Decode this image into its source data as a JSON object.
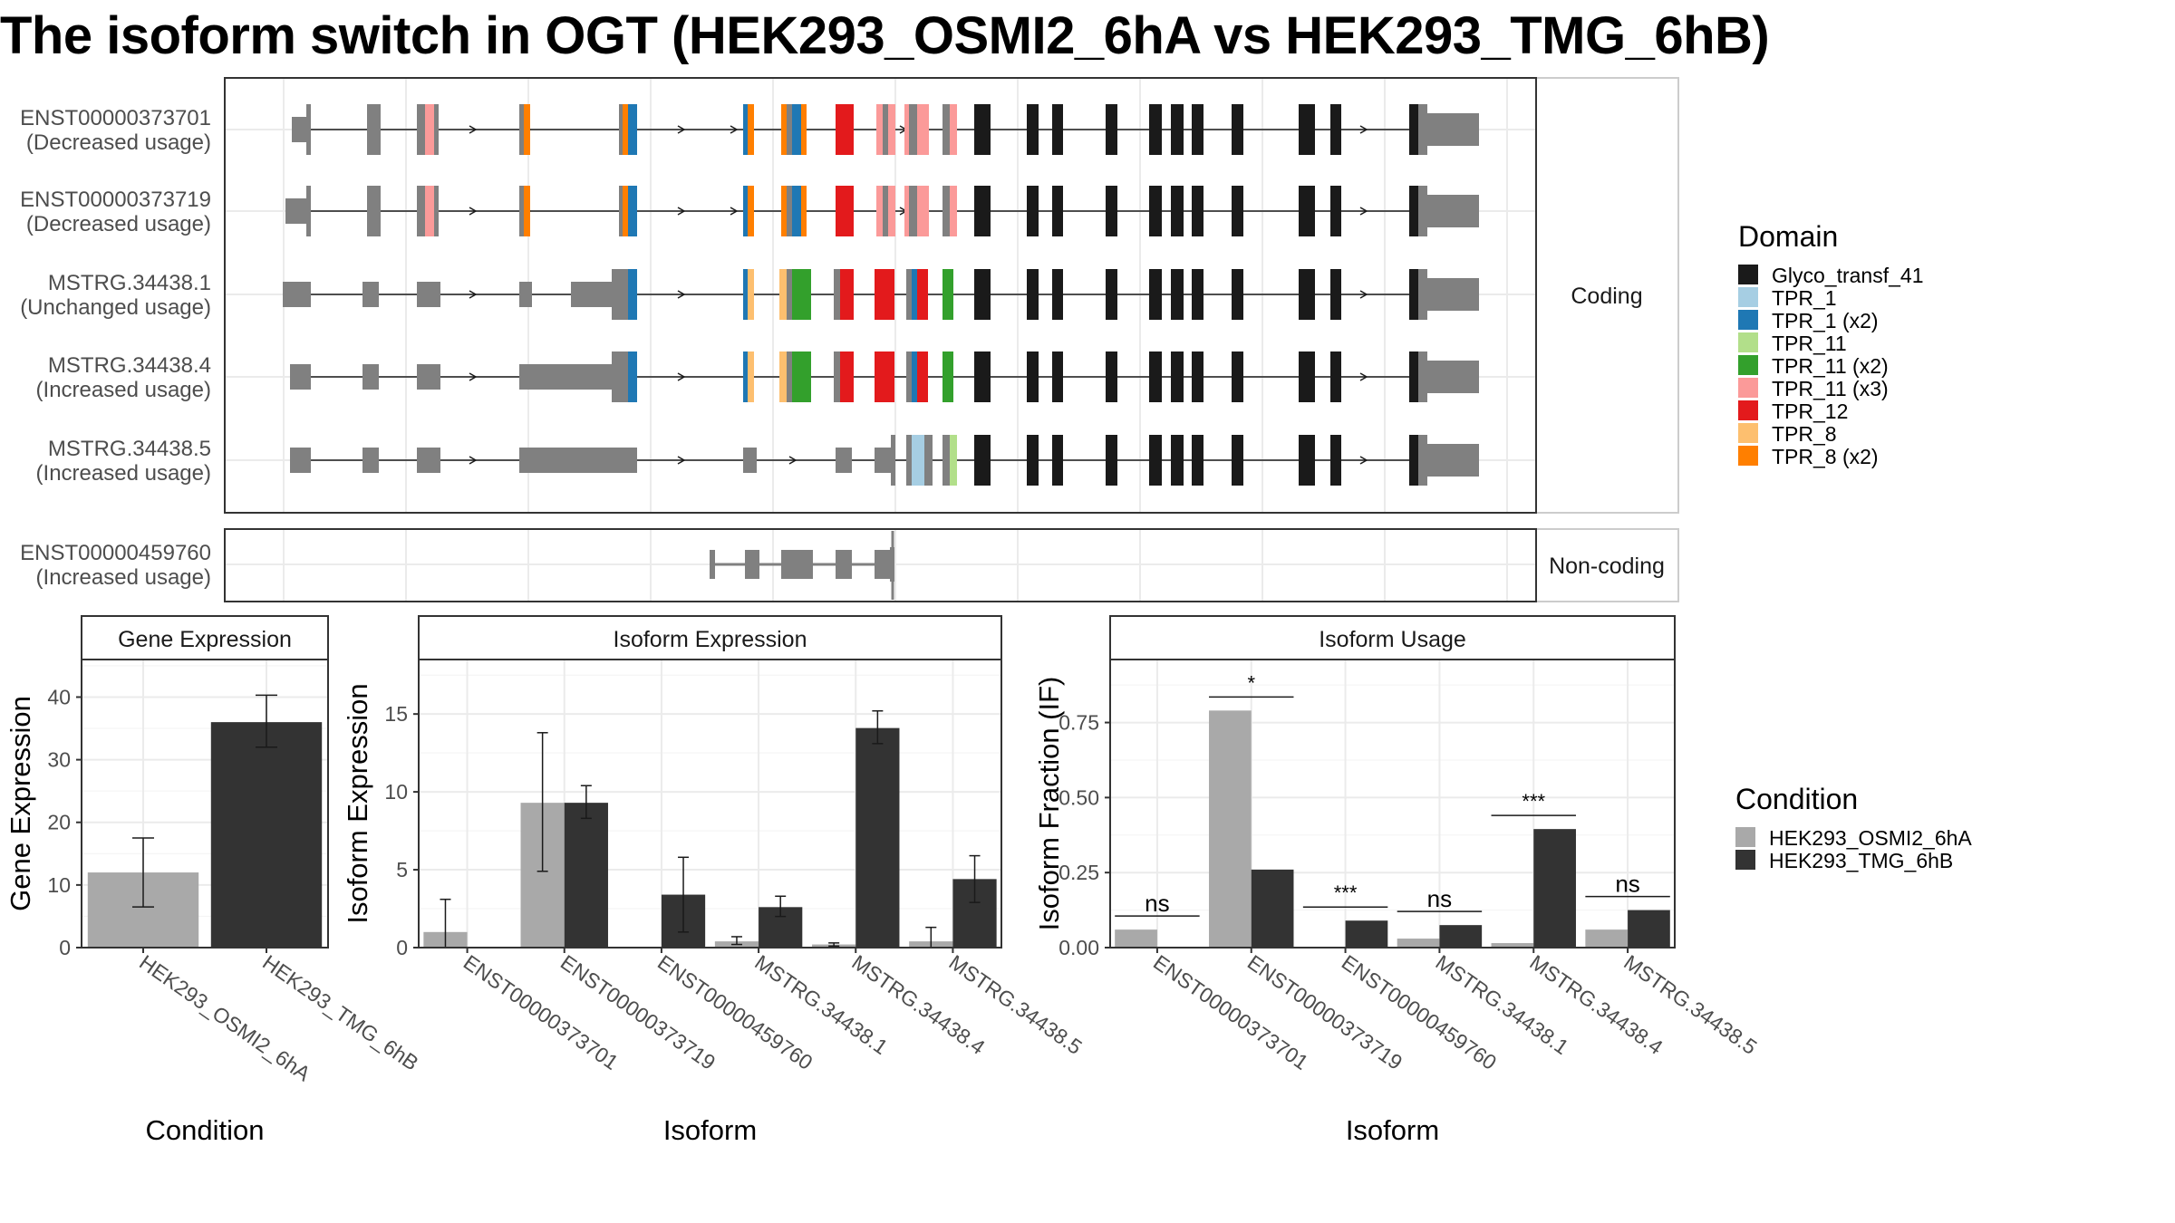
{
  "title": "The isoform switch in OGT (HEK293_OSMI2_6hA vs HEK293_TMG_6hB)",
  "colors": {
    "Glyco_transf_41": "#1a1a1a",
    "TPR_1": "#a6cee3",
    "TPR_1 (x2)": "#1f78b4",
    "TPR_11": "#b2df8a",
    "TPR_11 (x2)": "#33a02c",
    "TPR_11 (x3)": "#fb9a99",
    "TPR_12": "#e31a1c",
    "TPR_8": "#fdbf6f",
    "TPR_8 (x2)": "#ff7f00",
    "exon": "#808080",
    "cond_a": "#a9a9a9",
    "cond_b": "#333333"
  },
  "structure": {
    "coding_strip": "Coding",
    "noncoding_strip": "Non-coding",
    "isoforms": [
      {
        "id": "ENST00000373701",
        "usage": "(Decreased usage)",
        "group": "coding"
      },
      {
        "id": "ENST00000373719",
        "usage": "(Decreased usage)",
        "group": "coding"
      },
      {
        "id": "MSTRG.34438.1",
        "usage": "(Unchanged usage)",
        "group": "coding"
      },
      {
        "id": "MSTRG.34438.4",
        "usage": "(Increased usage)",
        "group": "coding"
      },
      {
        "id": "MSTRG.34438.5",
        "usage": "(Increased usage)",
        "group": "coding"
      },
      {
        "id": "ENST00000459760",
        "usage": "(Increased usage)",
        "group": "noncoding"
      }
    ]
  },
  "domain_legend": {
    "title": "Domain",
    "items": [
      "Glyco_transf_41",
      "TPR_1",
      "TPR_1 (x2)",
      "TPR_11",
      "TPR_11 (x2)",
      "TPR_11 (x3)",
      "TPR_12",
      "TPR_8",
      "TPR_8 (x2)"
    ]
  },
  "condition_legend": {
    "title": "Condition",
    "items": [
      "HEK293_OSMI2_6hA",
      "HEK293_TMG_6hB"
    ]
  },
  "chart_data": [
    {
      "type": "bar",
      "title": "Gene Expression",
      "xlabel": "Condition",
      "ylabel": "Gene Expression",
      "categories": [
        "HEK293_OSMI2_6hA",
        "HEK293_TMG_6hB"
      ],
      "values": [
        12,
        36
      ],
      "error_low": [
        6.5,
        32
      ],
      "error_high": [
        17.5,
        40.3
      ],
      "ylim": [
        0,
        46
      ],
      "yticks": [
        0,
        10,
        20,
        30,
        40
      ]
    },
    {
      "type": "bar",
      "title": "Isoform Expression",
      "xlabel": "Isoform",
      "ylabel": "Isoform Expression",
      "categories": [
        "ENST00000373701",
        "ENST00000373719",
        "ENST00000459760",
        "MSTRG.34438.1",
        "MSTRG.34438.4",
        "MSTRG.34438.5"
      ],
      "series": [
        {
          "name": "HEK293_OSMI2_6hA",
          "values": [
            1.0,
            9.3,
            0.0,
            0.4,
            0.2,
            0.4
          ],
          "error_low": [
            0.0,
            4.9,
            0.0,
            0.2,
            0.1,
            0.0
          ],
          "error_high": [
            3.1,
            13.8,
            0.0,
            0.7,
            0.3,
            1.3
          ]
        },
        {
          "name": "HEK293_TMG_6hB",
          "values": [
            0.0,
            9.3,
            3.4,
            2.6,
            14.1,
            4.4
          ],
          "error_low": [
            0.0,
            8.3,
            1.0,
            2.0,
            13.1,
            2.9
          ],
          "error_high": [
            0.0,
            10.4,
            5.8,
            3.3,
            15.2,
            5.9
          ]
        }
      ],
      "ylim": [
        0,
        18.5
      ],
      "yticks": [
        0,
        5,
        10,
        15
      ]
    },
    {
      "type": "bar",
      "title": "Isoform Usage",
      "xlabel": "Isoform",
      "ylabel": "Isoform Fraction (IF)",
      "categories": [
        "ENST00000373701",
        "ENST00000373719",
        "ENST00000459760",
        "MSTRG.34438.1",
        "MSTRG.34438.4",
        "MSTRG.34438.5"
      ],
      "series": [
        {
          "name": "HEK293_OSMI2_6hA",
          "values": [
            0.06,
            0.79,
            0.0,
            0.03,
            0.015,
            0.06
          ]
        },
        {
          "name": "HEK293_TMG_6hB",
          "values": [
            0.0,
            0.26,
            0.09,
            0.075,
            0.395,
            0.125
          ]
        }
      ],
      "significance": [
        "ns",
        "*",
        "***",
        "ns",
        "***",
        "ns"
      ],
      "ylim": [
        0,
        0.96
      ],
      "yticks": [
        0.0,
        0.25,
        0.5,
        0.75
      ],
      "ytick_labels": [
        "0.00",
        "0.25",
        "0.50",
        "0.75"
      ]
    }
  ]
}
